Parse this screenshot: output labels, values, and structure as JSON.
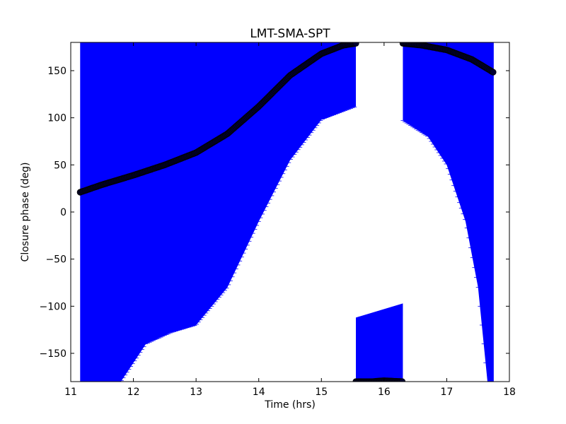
{
  "chart_data": {
    "type": "scatter",
    "title": "LMT-SMA-SPT",
    "xlabel": "Time (hrs)",
    "ylabel": "Closure phase (deg)",
    "xlim": [
      11,
      18
    ],
    "ylim": [
      -180,
      180
    ],
    "x_ticks": [
      "11",
      "12",
      "13",
      "14",
      "15",
      "16",
      "17",
      "18"
    ],
    "y_ticks": [
      "150",
      "100",
      "50",
      "0",
      "−50",
      "−100",
      "−150"
    ],
    "grid": false,
    "legend": "none",
    "series": [
      {
        "kind": "points",
        "color": "#000033",
        "segments": [
          [
            [
              11.15,
              21
            ],
            [
              11.5,
              29
            ],
            [
              12.0,
              39
            ],
            [
              12.5,
              50
            ],
            [
              13.0,
              63
            ],
            [
              13.5,
              83
            ],
            [
              14.0,
              112
            ],
            [
              14.5,
              145
            ],
            [
              15.0,
              168
            ],
            [
              15.35,
              177
            ],
            [
              15.55,
              179
            ]
          ],
          [
            [
              15.55,
              -180
            ],
            [
              15.8,
              -180
            ],
            [
              16.0,
              -179
            ],
            [
              16.3,
              -180
            ]
          ],
          [
            [
              16.3,
              179
            ],
            [
              16.6,
              177
            ],
            [
              17.0,
              172
            ],
            [
              17.4,
              162
            ],
            [
              17.75,
              148
            ]
          ]
        ]
      },
      {
        "kind": "error-band",
        "color": "#0000ff",
        "segments": [
          {
            "x": [
              11.15,
              11.8,
              12.2,
              12.6,
              13.0,
              13.5,
              14.0,
              14.5,
              15.0,
              15.55
            ],
            "lower": [
              -180,
              -180,
              -140,
              -128,
              -120,
              -80,
              -10,
              55,
              98,
              112
            ],
            "upper": [
              180,
              180,
              180,
              180,
              180,
              180,
              180,
              180,
              180,
              180
            ]
          },
          {
            "x": [
              15.55,
              16.3
            ],
            "lower": [
              -180,
              -180
            ],
            "upper": [
              -112,
              -97
            ]
          },
          {
            "x": [
              16.3,
              16.7,
              17.0,
              17.3,
              17.5,
              17.65,
              17.75
            ],
            "lower": [
              97,
              80,
              50,
              -10,
              -80,
              -180,
              -180
            ],
            "upper": [
              180,
              180,
              180,
              180,
              180,
              180,
              180
            ]
          }
        ]
      }
    ]
  }
}
